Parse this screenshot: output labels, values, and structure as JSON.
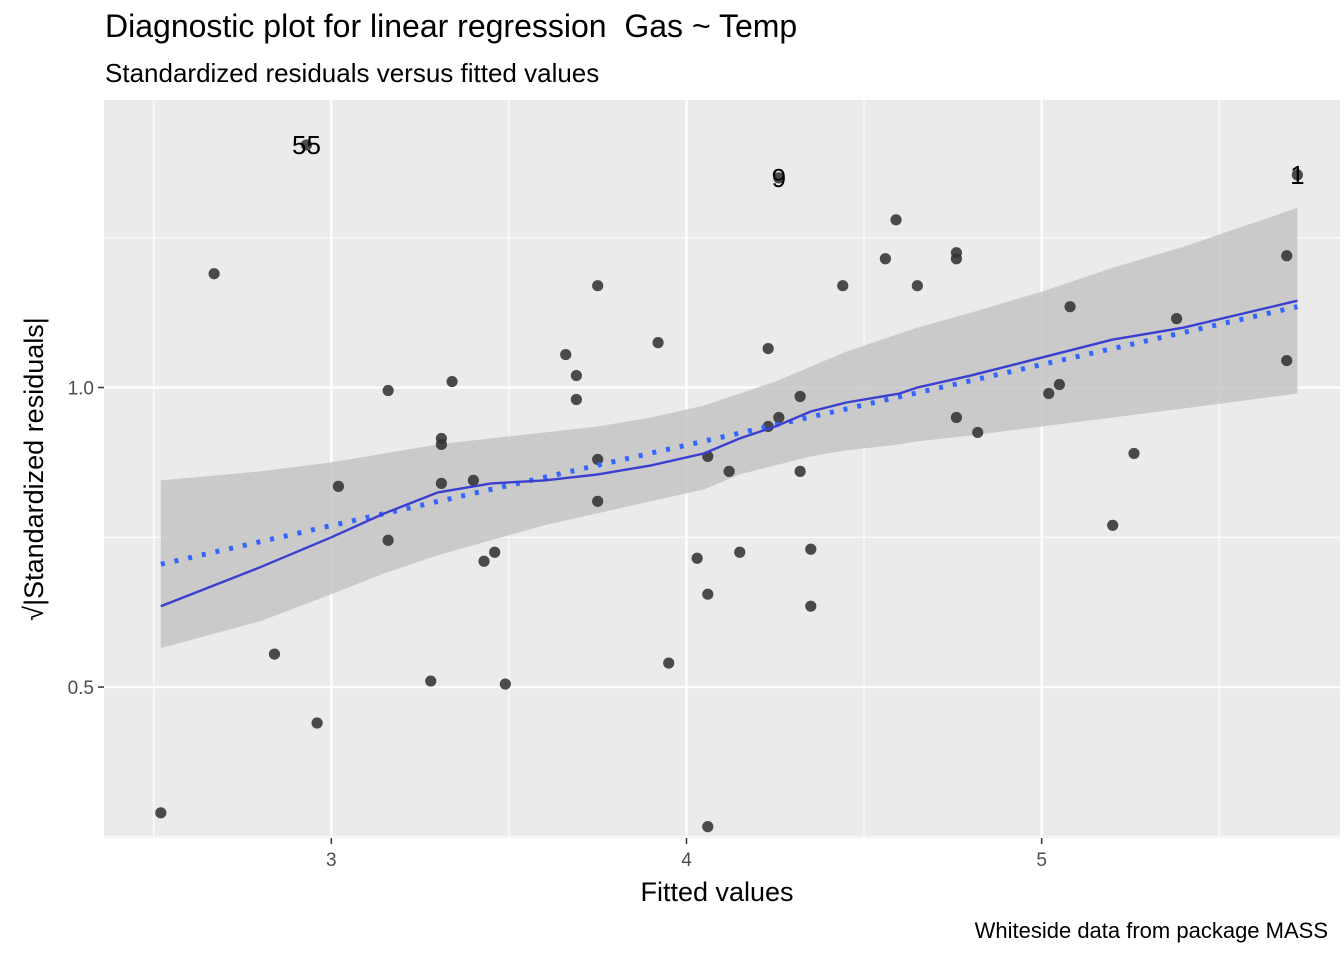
{
  "title": "Diagnostic plot for linear regression  Gas ~ Temp",
  "subtitle": "Standardized residuals versus fitted values",
  "caption": "Whiteside data from package MASS",
  "chart_data": {
    "type": "scatter",
    "xlabel": "Fitted values",
    "ylabel": "√|Standardized residuals|",
    "xlim": [
      2.36,
      5.84
    ],
    "ylim": [
      0.248,
      1.48
    ],
    "x_ticks": [
      3,
      4,
      5
    ],
    "y_ticks": [
      0.5,
      1.0
    ],
    "x_tick_labels": [
      "3",
      "4",
      "5"
    ],
    "y_tick_labels": [
      "0.5",
      "1.0"
    ],
    "grid": true,
    "colors": {
      "panel": "#ebebeb",
      "grid": "#ffffff",
      "points": "#333333",
      "loess_line": "#3a3fd0",
      "linear_line": "#3366ff",
      "ribbon": "#bdbdbd"
    },
    "points": [
      {
        "x": 2.52,
        "y": 0.29
      },
      {
        "x": 2.67,
        "y": 1.19
      },
      {
        "x": 2.84,
        "y": 0.555
      },
      {
        "x": 2.93,
        "y": 1.405
      },
      {
        "x": 2.96,
        "y": 0.44
      },
      {
        "x": 3.02,
        "y": 0.835
      },
      {
        "x": 3.16,
        "y": 0.995
      },
      {
        "x": 3.16,
        "y": 0.745
      },
      {
        "x": 3.28,
        "y": 0.51
      },
      {
        "x": 3.31,
        "y": 0.915
      },
      {
        "x": 3.31,
        "y": 0.905
      },
      {
        "x": 3.31,
        "y": 0.84
      },
      {
        "x": 3.34,
        "y": 1.01
      },
      {
        "x": 3.4,
        "y": 0.845
      },
      {
        "x": 3.43,
        "y": 0.71
      },
      {
        "x": 3.46,
        "y": 0.725
      },
      {
        "x": 3.49,
        "y": 0.505
      },
      {
        "x": 3.66,
        "y": 1.055
      },
      {
        "x": 3.69,
        "y": 1.02
      },
      {
        "x": 3.69,
        "y": 0.98
      },
      {
        "x": 3.75,
        "y": 1.17
      },
      {
        "x": 3.75,
        "y": 0.88
      },
      {
        "x": 3.75,
        "y": 0.81
      },
      {
        "x": 3.92,
        "y": 1.075
      },
      {
        "x": 3.95,
        "y": 0.54
      },
      {
        "x": 4.03,
        "y": 0.715
      },
      {
        "x": 4.06,
        "y": 0.885
      },
      {
        "x": 4.06,
        "y": 0.655
      },
      {
        "x": 4.06,
        "y": 0.267
      },
      {
        "x": 4.12,
        "y": 0.86
      },
      {
        "x": 4.15,
        "y": 0.725
      },
      {
        "x": 4.23,
        "y": 1.065
      },
      {
        "x": 4.23,
        "y": 0.935
      },
      {
        "x": 4.26,
        "y": 1.35
      },
      {
        "x": 4.26,
        "y": 0.95
      },
      {
        "x": 4.32,
        "y": 0.985
      },
      {
        "x": 4.32,
        "y": 0.86
      },
      {
        "x": 4.35,
        "y": 0.73
      },
      {
        "x": 4.35,
        "y": 0.635
      },
      {
        "x": 4.44,
        "y": 1.17
      },
      {
        "x": 4.56,
        "y": 1.215
      },
      {
        "x": 4.59,
        "y": 1.28
      },
      {
        "x": 4.65,
        "y": 1.17
      },
      {
        "x": 4.76,
        "y": 1.225
      },
      {
        "x": 4.76,
        "y": 1.215
      },
      {
        "x": 4.76,
        "y": 0.95
      },
      {
        "x": 4.82,
        "y": 0.925
      },
      {
        "x": 5.02,
        "y": 0.99
      },
      {
        "x": 5.05,
        "y": 1.005
      },
      {
        "x": 5.08,
        "y": 1.135
      },
      {
        "x": 5.2,
        "y": 0.77
      },
      {
        "x": 5.26,
        "y": 0.89
      },
      {
        "x": 5.38,
        "y": 1.115
      },
      {
        "x": 5.69,
        "y": 1.22
      },
      {
        "x": 5.69,
        "y": 1.045
      },
      {
        "x": 5.72,
        "y": 1.355
      }
    ],
    "point_labels": [
      {
        "text": "55",
        "x": 2.93,
        "y": 1.405
      },
      {
        "text": "9",
        "x": 4.26,
        "y": 1.35
      },
      {
        "text": "1",
        "x": 5.72,
        "y": 1.355
      }
    ],
    "loess": {
      "x": [
        2.52,
        2.8,
        3.0,
        3.15,
        3.3,
        3.45,
        3.6,
        3.75,
        3.9,
        4.05,
        4.15,
        4.25,
        4.35,
        4.45,
        4.6,
        4.65,
        4.8,
        5.0,
        5.2,
        5.4,
        5.72
      ],
      "y": [
        0.635,
        0.7,
        0.75,
        0.79,
        0.825,
        0.84,
        0.845,
        0.855,
        0.87,
        0.89,
        0.915,
        0.935,
        0.96,
        0.975,
        0.99,
        1.0,
        1.02,
        1.05,
        1.08,
        1.1,
        1.145
      ],
      "lower": [
        0.565,
        0.61,
        0.655,
        0.69,
        0.72,
        0.745,
        0.77,
        0.79,
        0.81,
        0.83,
        0.855,
        0.87,
        0.885,
        0.895,
        0.905,
        0.91,
        0.92,
        0.935,
        0.95,
        0.965,
        0.99
      ],
      "upper": [
        0.845,
        0.86,
        0.875,
        0.89,
        0.905,
        0.915,
        0.925,
        0.935,
        0.95,
        0.97,
        0.99,
        1.01,
        1.035,
        1.06,
        1.09,
        1.1,
        1.125,
        1.16,
        1.2,
        1.235,
        1.3
      ]
    },
    "linear_fit": {
      "x": [
        2.52,
        5.72
      ],
      "y": [
        0.705,
        1.135
      ]
    }
  }
}
